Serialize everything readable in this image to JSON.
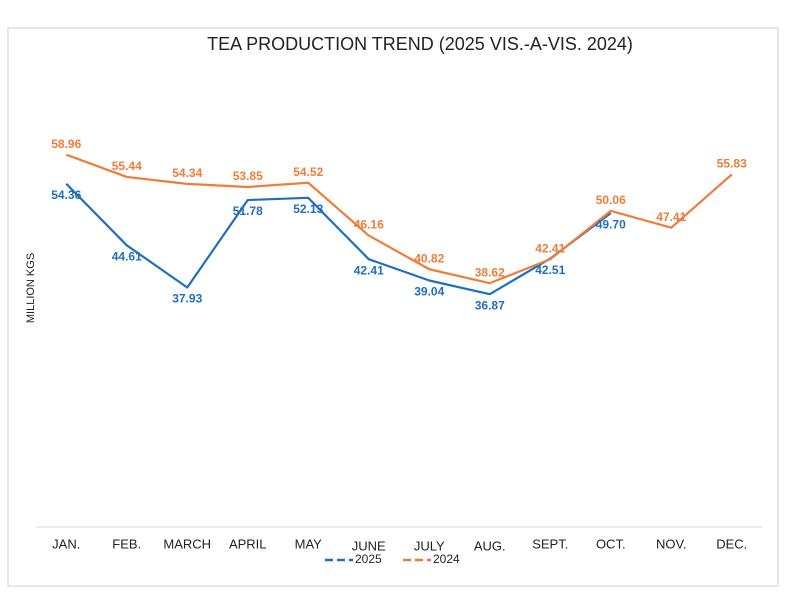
{
  "chart_data": {
    "type": "line",
    "title": "TEA PRODUCTION TREND (2025 VIS.-A-VIS. 2024)",
    "y_label": "MILLION KGS",
    "categories": [
      "JAN.",
      "FEB.",
      "MARCH",
      "APRIL",
      "MAY",
      "JUNE",
      "JULY",
      "AUG.",
      "SEPT.",
      "OCT.",
      "NOV.",
      "DEC."
    ],
    "ylim": [
      0,
      70
    ],
    "series": [
      {
        "name": "2025",
        "color": "#1f6fc0",
        "values": [
          54.36,
          44.61,
          37.93,
          51.78,
          52.13,
          42.41,
          39.04,
          36.87,
          42.51,
          49.7,
          null,
          null
        ],
        "value_labels": [
          "54.36",
          "44.61",
          "37.93",
          "51.78",
          "52.13",
          "42.41",
          "39.04",
          "36.87",
          "42.51",
          "49.70",
          null,
          null
        ]
      },
      {
        "name": "2024",
        "color": "#ef7d3a",
        "values": [
          58.96,
          55.44,
          54.34,
          53.85,
          54.52,
          46.16,
          40.82,
          38.62,
          42.41,
          50.06,
          47.41,
          55.83
        ]
      }
    ],
    "legend": "bottom"
  }
}
